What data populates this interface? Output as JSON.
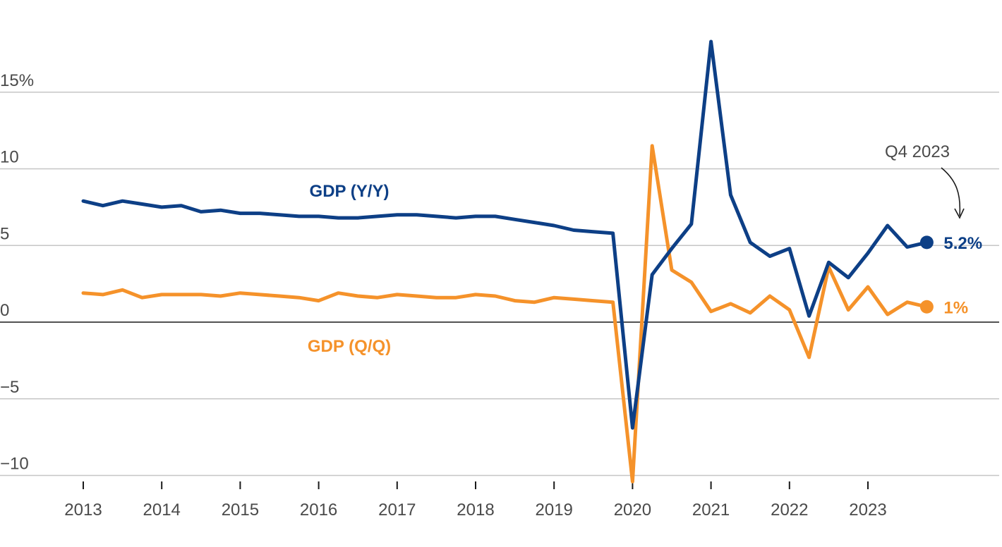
{
  "chart_data": {
    "type": "line",
    "y_ticks": [
      {
        "value": 15,
        "label": "15%"
      },
      {
        "value": 10,
        "label": "10"
      },
      {
        "value": 5,
        "label": "5"
      },
      {
        "value": 0,
        "label": "0"
      },
      {
        "value": -5,
        "label": "−5"
      },
      {
        "value": -10,
        "label": "−10"
      }
    ],
    "x_ticks": [
      "2013",
      "2014",
      "2015",
      "2016",
      "2017",
      "2018",
      "2019",
      "2020",
      "2021",
      "2022",
      "2023"
    ],
    "ylim": [
      -10,
      20
    ],
    "xlim": [
      2013,
      2024
    ],
    "grid": true,
    "series": [
      {
        "key": "yy",
        "name": "GDP (Y/Y)",
        "color": "#0d3f86",
        "end_label": "5.2%",
        "x": [
          2013.0,
          2013.25,
          2013.5,
          2013.75,
          2014.0,
          2014.25,
          2014.5,
          2014.75,
          2015.0,
          2015.25,
          2015.5,
          2015.75,
          2016.0,
          2016.25,
          2016.5,
          2016.75,
          2017.0,
          2017.25,
          2017.5,
          2017.75,
          2018.0,
          2018.25,
          2018.5,
          2018.75,
          2019.0,
          2019.25,
          2019.5,
          2019.75,
          2020.0,
          2020.25,
          2020.5,
          2020.75,
          2021.0,
          2021.25,
          2021.5,
          2021.75,
          2022.0,
          2022.25,
          2022.5,
          2022.75,
          2023.0,
          2023.25,
          2023.5,
          2023.75
        ],
        "values": [
          7.9,
          7.6,
          7.9,
          7.7,
          7.5,
          7.6,
          7.2,
          7.3,
          7.1,
          7.1,
          7.0,
          6.9,
          6.9,
          6.8,
          6.8,
          6.9,
          7.0,
          7.0,
          6.9,
          6.8,
          6.9,
          6.9,
          6.7,
          6.5,
          6.3,
          6.0,
          5.9,
          5.8,
          -6.9,
          3.1,
          4.8,
          6.4,
          18.3,
          8.3,
          5.2,
          4.3,
          4.8,
          0.4,
          3.9,
          2.9,
          4.5,
          6.3,
          4.9,
          5.2
        ]
      },
      {
        "key": "qq",
        "name": "GDP (Q/Q)",
        "color": "#f5922a",
        "end_label": "1%",
        "x": [
          2013.0,
          2013.25,
          2013.5,
          2013.75,
          2014.0,
          2014.25,
          2014.5,
          2014.75,
          2015.0,
          2015.25,
          2015.5,
          2015.75,
          2016.0,
          2016.25,
          2016.5,
          2016.75,
          2017.0,
          2017.25,
          2017.5,
          2017.75,
          2018.0,
          2018.25,
          2018.5,
          2018.75,
          2019.0,
          2019.25,
          2019.5,
          2019.75,
          2020.0,
          2020.25,
          2020.5,
          2020.75,
          2021.0,
          2021.25,
          2021.5,
          2021.75,
          2022.0,
          2022.25,
          2022.5,
          2022.75,
          2023.0,
          2023.25,
          2023.5,
          2023.75
        ],
        "values": [
          1.9,
          1.8,
          2.1,
          1.6,
          1.8,
          1.8,
          1.8,
          1.7,
          1.9,
          1.8,
          1.7,
          1.6,
          1.4,
          1.9,
          1.7,
          1.6,
          1.8,
          1.7,
          1.6,
          1.6,
          1.8,
          1.7,
          1.4,
          1.3,
          1.6,
          1.5,
          1.4,
          1.3,
          -10.4,
          11.5,
          3.4,
          2.6,
          0.7,
          1.2,
          0.6,
          1.7,
          0.8,
          -2.3,
          3.6,
          0.8,
          2.3,
          0.5,
          1.3,
          1.0
        ]
      }
    ],
    "annotation": {
      "text": "Q4 2023"
    }
  }
}
